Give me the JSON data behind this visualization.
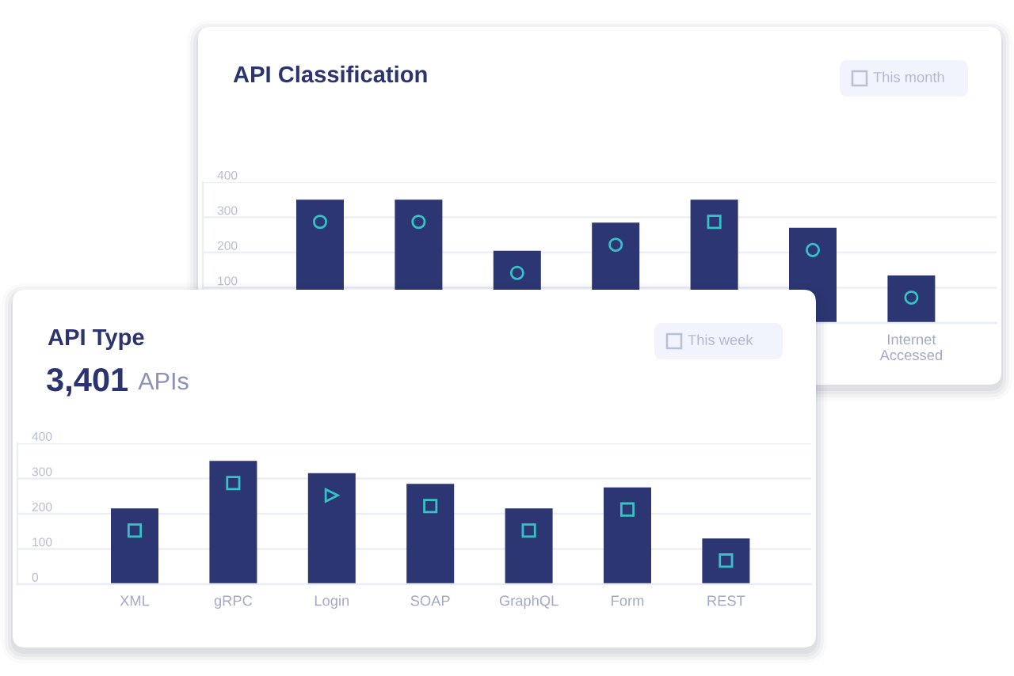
{
  "chart_data": [
    {
      "type": "bar",
      "title": "API Classification",
      "annotations": [
        "This month"
      ],
      "categories": [
        null,
        null,
        null,
        null,
        null,
        null,
        "Internet Accessed"
      ],
      "values": [
        350,
        350,
        205,
        285,
        350,
        270,
        135
      ],
      "color": "#2c3673",
      "ylim": [
        0,
        400
      ],
      "yticks": [
        100,
        200,
        300,
        400
      ],
      "grid": "y"
    },
    {
      "type": "bar",
      "title": "API Type",
      "subtitle": "3,401 APIs",
      "annotations": [
        "This week"
      ],
      "categories": [
        "XML",
        "gRPC",
        "Login",
        "SOAP",
        "GraphQL",
        "Form",
        "REST"
      ],
      "values": [
        215,
        350,
        315,
        285,
        215,
        275,
        130
      ],
      "color": "#2c3673",
      "ylim": [
        0,
        400
      ],
      "yticks": [
        0,
        100,
        200,
        300,
        400
      ],
      "grid": "y"
    }
  ]
}
